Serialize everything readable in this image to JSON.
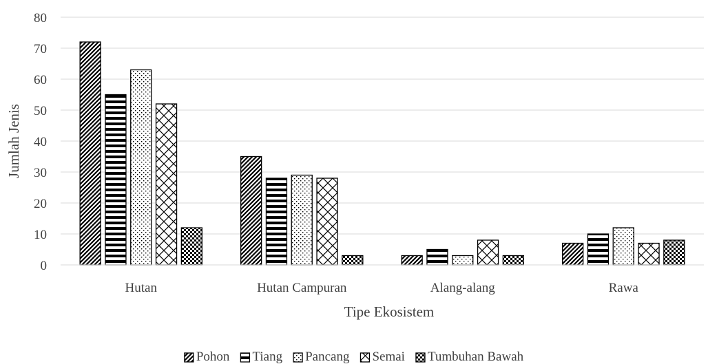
{
  "chart_data": {
    "type": "bar",
    "title": "",
    "xlabel": "Tipe Ekosistem",
    "ylabel": "Jumlah Jenis",
    "ylim": [
      0,
      80
    ],
    "yticks": [
      0,
      10,
      20,
      30,
      40,
      50,
      60,
      70,
      80
    ],
    "grid": true,
    "legend_position": "bottom",
    "categories": [
      "Hutan",
      "Hutan Campuran",
      "Alang-alang",
      "Rawa"
    ],
    "series": [
      {
        "name": "Pohon",
        "pattern": "diagonal-stripes",
        "values": [
          72,
          35,
          3,
          7
        ]
      },
      {
        "name": "Tiang",
        "pattern": "horizontal-stripes",
        "values": [
          55,
          28,
          5,
          10
        ]
      },
      {
        "name": "Pancang",
        "pattern": "dots",
        "values": [
          63,
          29,
          3,
          12
        ]
      },
      {
        "name": "Semai",
        "pattern": "diagonal-cross",
        "values": [
          52,
          28,
          8,
          7
        ]
      },
      {
        "name": "Tumbuhan Bawah",
        "pattern": "checkerboard",
        "values": [
          12,
          3,
          3,
          8
        ]
      }
    ],
    "colors": {
      "bar_stroke": "#000000",
      "pattern_ink": "#000000",
      "grid": "#d9d9d9",
      "text": "#404040",
      "background": "#ffffff"
    }
  }
}
